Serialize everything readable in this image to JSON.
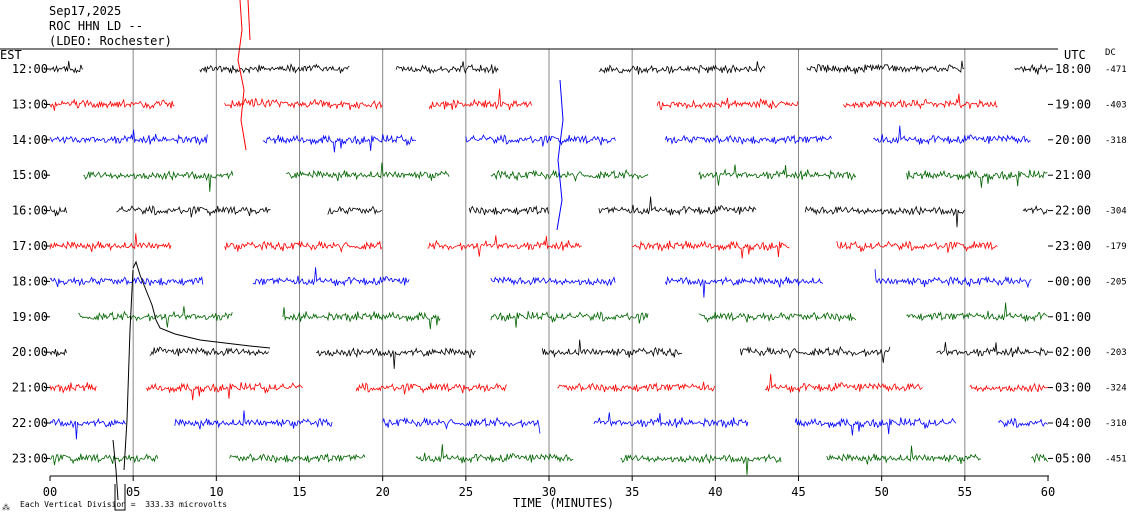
{
  "header": {
    "date": "Sep17,2025",
    "station": "ROC HHN LD --",
    "network": "(LDEO: Rochester)"
  },
  "left_axis_title": "EST",
  "right_axis_title": "UTC",
  "dc_title": "DC",
  "x_axis_title": "TIME (MINUTES)",
  "scale_note": "Each Vertical Division =  333.33 microvolts",
  "colors": {
    "black": "#000000",
    "red": "#ff0000",
    "blue": "#0000ff",
    "green": "#006400"
  },
  "chart_data": {
    "type": "line",
    "title": "",
    "xlabel": "TIME (MINUTES)",
    "ylabel": "",
    "xlim": [
      0,
      60
    ],
    "x_ticks": [
      "00",
      "05",
      "10",
      "15",
      "20",
      "25",
      "30",
      "35",
      "40",
      "45",
      "50",
      "55",
      "60"
    ],
    "color_cycle": [
      "black",
      "red",
      "blue",
      "green"
    ],
    "rows": [
      {
        "est": "12:00",
        "utc": "18:00",
        "dc": "-471",
        "color": "black",
        "segments": [
          [
            0,
            2
          ],
          [
            9,
            18
          ],
          [
            20.8,
            27
          ],
          [
            33,
            43
          ],
          [
            45.5,
            55
          ],
          [
            58,
            60
          ]
        ]
      },
      {
        "est": "13:00",
        "utc": "19:00",
        "dc": "-403",
        "color": "red",
        "segments": [
          [
            0,
            7.5
          ],
          [
            10.5,
            20
          ],
          [
            22.8,
            29
          ],
          [
            36.5,
            45
          ],
          [
            47.7,
            57
          ]
        ]
      },
      {
        "est": "14:00",
        "utc": "20:00",
        "dc": "-318",
        "color": "blue",
        "segments": [
          [
            0,
            9.5
          ],
          [
            12.8,
            22
          ],
          [
            25,
            34
          ],
          [
            37,
            47
          ],
          [
            49.5,
            59
          ]
        ]
      },
      {
        "est": "15:00",
        "utc": "21:00",
        "dc": "",
        "color": "green",
        "segments": [
          [
            2,
            11
          ],
          [
            14.2,
            24
          ],
          [
            26.5,
            36
          ],
          [
            39,
            48.5
          ],
          [
            51.5,
            60
          ]
        ]
      },
      {
        "est": "16:00",
        "utc": "22:00",
        "dc": "-304",
        "color": "black",
        "segments": [
          [
            0,
            1
          ],
          [
            4,
            13.3
          ],
          [
            16.7,
            20
          ],
          [
            25.2,
            30
          ],
          [
            33,
            42.5
          ],
          [
            45.4,
            55
          ],
          [
            58.5,
            60
          ]
        ]
      },
      {
        "est": "17:00",
        "utc": "23:00",
        "dc": "-179",
        "color": "red",
        "segments": [
          [
            0,
            7.3
          ],
          [
            10.5,
            20
          ],
          [
            22.7,
            32
          ],
          [
            35,
            44.5
          ],
          [
            47.3,
            57
          ]
        ]
      },
      {
        "est": "18:00",
        "utc": "00:00",
        "dc": "-205",
        "color": "blue",
        "segments": [
          [
            0,
            9.2
          ],
          [
            12.2,
            21.6
          ],
          [
            26.5,
            34
          ],
          [
            37,
            46.5
          ],
          [
            49.6,
            59
          ]
        ]
      },
      {
        "est": "19:00",
        "utc": "01:00",
        "dc": "",
        "color": "green",
        "segments": [
          [
            1.7,
            11
          ],
          [
            14,
            23.5
          ],
          [
            26.5,
            36
          ],
          [
            39,
            48.5
          ],
          [
            51.5,
            60
          ]
        ]
      },
      {
        "est": "20:00",
        "utc": "02:00",
        "dc": "-203",
        "color": "black",
        "segments": [
          [
            0,
            1
          ],
          [
            6,
            13.2
          ],
          [
            16,
            25.6
          ],
          [
            29.6,
            38
          ],
          [
            41.5,
            50.5
          ],
          [
            53.3,
            60
          ]
        ]
      },
      {
        "est": "21:00",
        "utc": "03:00",
        "dc": "-324",
        "color": "red",
        "segments": [
          [
            0,
            2.8
          ],
          [
            5.8,
            15.2
          ],
          [
            18.4,
            27.5
          ],
          [
            30.5,
            40
          ],
          [
            43,
            52.5
          ],
          [
            55.3,
            60
          ]
        ]
      },
      {
        "est": "22:00",
        "utc": "04:00",
        "dc": "-310",
        "color": "blue",
        "segments": [
          [
            0,
            4.6
          ],
          [
            7.5,
            17
          ],
          [
            20,
            29.5
          ],
          [
            32.7,
            42
          ],
          [
            44.8,
            54.5
          ],
          [
            57,
            60
          ]
        ]
      },
      {
        "est": "23:00",
        "utc": "05:00",
        "dc": "-451",
        "color": "green",
        "segments": [
          [
            0,
            6.5
          ],
          [
            10.8,
            19
          ],
          [
            22,
            31.5
          ],
          [
            34.3,
            44
          ],
          [
            46.7,
            56
          ],
          [
            59,
            60
          ]
        ]
      }
    ]
  }
}
